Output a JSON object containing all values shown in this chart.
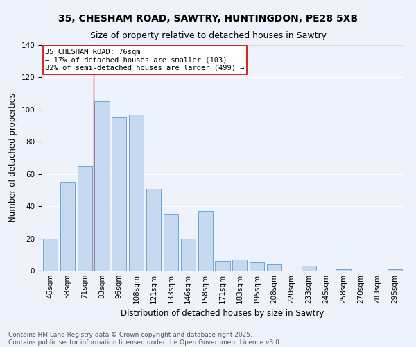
{
  "title": "35, CHESHAM ROAD, SAWTRY, HUNTINGDON, PE28 5XB",
  "subtitle": "Size of property relative to detached houses in Sawtry",
  "xlabel": "Distribution of detached houses by size in Sawtry",
  "ylabel": "Number of detached properties",
  "categories": [
    "46sqm",
    "58sqm",
    "71sqm",
    "83sqm",
    "96sqm",
    "108sqm",
    "121sqm",
    "133sqm",
    "146sqm",
    "158sqm",
    "171sqm",
    "183sqm",
    "195sqm",
    "208sqm",
    "220sqm",
    "233sqm",
    "245sqm",
    "258sqm",
    "270sqm",
    "283sqm",
    "295sqm"
  ],
  "values": [
    20,
    55,
    65,
    105,
    95,
    97,
    51,
    35,
    20,
    37,
    6,
    7,
    5,
    4,
    0,
    3,
    0,
    1,
    0,
    0,
    1
  ],
  "bar_color": "#c5d9f0",
  "bar_edge_color": "#5b9bd5",
  "ylim": [
    0,
    140
  ],
  "yticks": [
    0,
    20,
    40,
    60,
    80,
    100,
    120,
    140
  ],
  "annotation_box_text": "35 CHESHAM ROAD: 76sqm\n← 17% of detached houses are smaller (103)\n82% of semi-detached houses are larger (499) →",
  "vline_x_index": 2.5,
  "footer_line1": "Contains HM Land Registry data © Crown copyright and database right 2025.",
  "footer_line2": "Contains public sector information licensed under the Open Government Licence v3.0.",
  "background_color": "#eef2fa",
  "plot_background_color": "#eef2fa",
  "box_edge_color": "#cc0000",
  "grid_color": "#ffffff",
  "title_fontsize": 10,
  "subtitle_fontsize": 9,
  "axis_label_fontsize": 8.5,
  "tick_fontsize": 7.5,
  "annotation_fontsize": 7.5,
  "footer_fontsize": 6.5
}
